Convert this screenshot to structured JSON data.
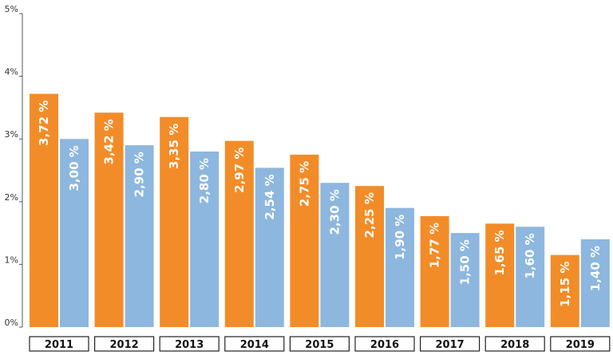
{
  "chart_data": {
    "type": "bar",
    "categories": [
      "2011",
      "2012",
      "2013",
      "2014",
      "2015",
      "2016",
      "2017",
      "2018",
      "2019"
    ],
    "series": [
      {
        "color": "#F28C28",
        "values": [
          3.72,
          3.42,
          3.35,
          2.97,
          2.75,
          2.25,
          1.77,
          1.65,
          1.15
        ],
        "value_labels": [
          "3,72 %",
          "3,42 %",
          "3,35 %",
          "2,97 %",
          "2,75 %",
          "2,25 %",
          "1,77 %",
          "1,65 %",
          "1,15 %"
        ]
      },
      {
        "color": "#8DB7DE",
        "values": [
          3.0,
          2.9,
          2.8,
          2.54,
          2.3,
          1.9,
          1.5,
          1.6,
          1.4
        ],
        "value_labels": [
          "3,00 %",
          "2,90 %",
          "2,80 %",
          "2,54 %",
          "2,30 %",
          "1,90 %",
          "1,50 %",
          "1,60 %",
          "1,40 %"
        ]
      }
    ],
    "y_ticks": [
      0,
      1,
      2,
      3,
      4,
      5
    ],
    "y_tick_labels": [
      "0%",
      "1%",
      "2%",
      "3%",
      "4%",
      "5%"
    ],
    "ylim": [
      0,
      5
    ],
    "grid": false,
    "legend": "none"
  }
}
